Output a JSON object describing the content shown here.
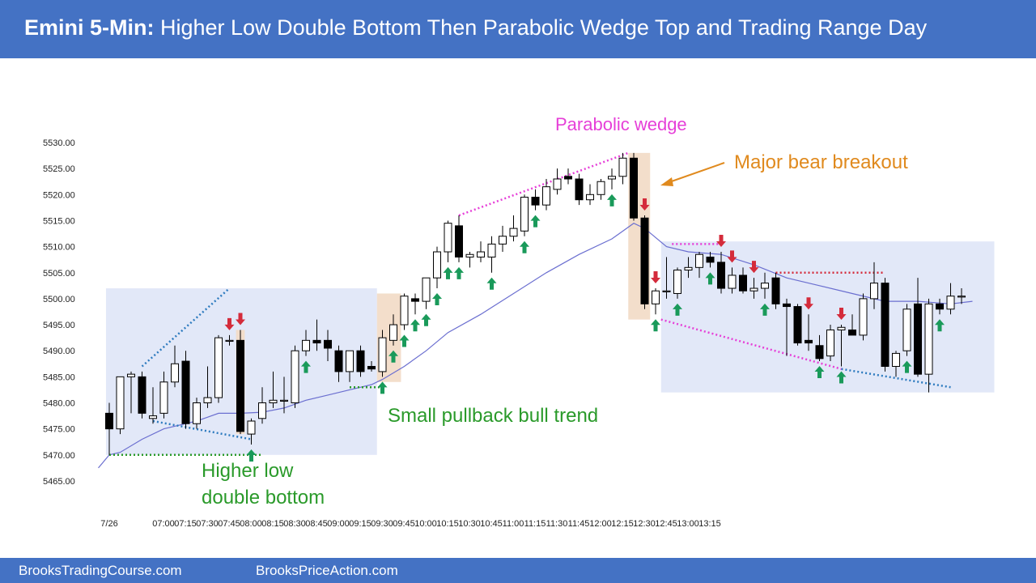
{
  "header": {
    "title_bold": "Emini 5-Min:",
    "title_rest": " Higher Low Double Bottom Then Parabolic Wedge Top and Trading Range Day"
  },
  "footer": {
    "left_text": "BrooksTradingCourse.com",
    "right_text": "BrooksPriceAction.com"
  },
  "colors": {
    "header_bg": "#4472c4",
    "range_box": "#dfe6f7",
    "breakout_box": "#f2dcc8",
    "ema": "#6b6fd0",
    "up_arrow": "#1a9a5a",
    "down_arrow": "#d42b3b",
    "magenta": "#e63fd8",
    "orange": "#e08a1e",
    "green_text": "#2a9a2a",
    "blue_dots": "#2e7bbf",
    "red_dots": "#d42b3b",
    "green_dots": "#2a9a2a"
  },
  "annotations": {
    "parabolic_wedge": "Parabolic wedge",
    "major_bear_breakout": "Major bear breakout",
    "small_pullback": "Small pullback bull trend",
    "higher_low_1": "Higher low",
    "higher_low_2": "double bottom"
  },
  "chart_data": {
    "type": "candlestick",
    "y_ticks": [
      "5530.00",
      "5525.00",
      "5520.00",
      "5515.00",
      "5510.00",
      "5505.00",
      "5500.00",
      "5495.00",
      "5490.00",
      "5485.00",
      "5480.00",
      "5475.00",
      "5470.00",
      "5465.00"
    ],
    "ylim": [
      5465,
      5530
    ],
    "x_ticks": [
      "7/26",
      "07:00",
      "07:15",
      "07:30",
      "07:45",
      "08:00",
      "08:15",
      "08:30",
      "08:45",
      "09:00",
      "09:15",
      "09:30",
      "09:45",
      "10:00",
      "10:15",
      "10:30",
      "10:45",
      "11:00",
      "11:15",
      "11:30",
      "11:45",
      "12:00",
      "12:15",
      "12:30",
      "12:45",
      "13:00",
      "13:15"
    ],
    "candles": [
      {
        "o": 5478,
        "h": 5480,
        "l": 5470,
        "c": 5475
      },
      {
        "o": 5475,
        "h": 5485,
        "l": 5474,
        "c": 5485
      },
      {
        "o": 5485,
        "h": 5486,
        "l": 5478,
        "c": 5485.5
      },
      {
        "o": 5485,
        "h": 5486,
        "l": 5477,
        "c": 5478
      },
      {
        "o": 5477,
        "h": 5483,
        "l": 5476,
        "c": 5477.5
      },
      {
        "o": 5478,
        "h": 5486,
        "l": 5477,
        "c": 5484
      },
      {
        "o": 5484,
        "h": 5491,
        "l": 5483,
        "c": 5487.5
      },
      {
        "o": 5488,
        "h": 5490,
        "l": 5475,
        "c": 5476
      },
      {
        "o": 5476,
        "h": 5481,
        "l": 5475,
        "c": 5480
      },
      {
        "o": 5480,
        "h": 5487,
        "l": 5479,
        "c": 5481
      },
      {
        "o": 5481,
        "h": 5493,
        "l": 5480,
        "c": 5492.5
      },
      {
        "o": 5492,
        "h": 5493,
        "l": 5491,
        "c": 5492
      },
      {
        "o": 5492,
        "h": 5494,
        "l": 5474,
        "c": 5474.5
      },
      {
        "o": 5474,
        "h": 5477,
        "l": 5472,
        "c": 5476.5
      },
      {
        "o": 5477,
        "h": 5483,
        "l": 5476,
        "c": 5480
      },
      {
        "o": 5480,
        "h": 5486,
        "l": 5479,
        "c": 5480.5
      },
      {
        "o": 5480.5,
        "h": 5485,
        "l": 5478,
        "c": 5480.5
      },
      {
        "o": 5480,
        "h": 5491,
        "l": 5479,
        "c": 5490
      },
      {
        "o": 5490,
        "h": 5494,
        "l": 5489,
        "c": 5492
      },
      {
        "o": 5492,
        "h": 5496,
        "l": 5490,
        "c": 5491.5
      },
      {
        "o": 5492,
        "h": 5494,
        "l": 5488,
        "c": 5490.5
      },
      {
        "o": 5490,
        "h": 5491,
        "l": 5484,
        "c": 5486
      },
      {
        "o": 5486,
        "h": 5490,
        "l": 5484,
        "c": 5490
      },
      {
        "o": 5490,
        "h": 5491,
        "l": 5485,
        "c": 5486
      },
      {
        "o": 5487,
        "h": 5488,
        "l": 5486,
        "c": 5486.5
      },
      {
        "o": 5486,
        "h": 5494,
        "l": 5485,
        "c": 5492.5
      },
      {
        "o": 5492,
        "h": 5497,
        "l": 5491,
        "c": 5495
      },
      {
        "o": 5495,
        "h": 5501,
        "l": 5494,
        "c": 5500.5
      },
      {
        "o": 5500,
        "h": 5501,
        "l": 5497,
        "c": 5499.5
      },
      {
        "o": 5499.5,
        "h": 5504,
        "l": 5498,
        "c": 5504
      },
      {
        "o": 5504,
        "h": 5510,
        "l": 5502,
        "c": 5509
      },
      {
        "o": 5509,
        "h": 5515,
        "l": 5507,
        "c": 5514.5
      },
      {
        "o": 5514,
        "h": 5516,
        "l": 5507,
        "c": 5508
      },
      {
        "o": 5508,
        "h": 5509,
        "l": 5506,
        "c": 5508.5
      },
      {
        "o": 5508,
        "h": 5511,
        "l": 5507,
        "c": 5509
      },
      {
        "o": 5508,
        "h": 5512,
        "l": 5505,
        "c": 5510.5
      },
      {
        "o": 5510.5,
        "h": 5514,
        "l": 5509,
        "c": 5512
      },
      {
        "o": 5512,
        "h": 5516,
        "l": 5511,
        "c": 5513.5
      },
      {
        "o": 5513,
        "h": 5520,
        "l": 5512,
        "c": 5519.5
      },
      {
        "o": 5519.5,
        "h": 5521,
        "l": 5517,
        "c": 5518
      },
      {
        "o": 5518,
        "h": 5523,
        "l": 5517,
        "c": 5521.5
      },
      {
        "o": 5521,
        "h": 5525,
        "l": 5520,
        "c": 5523
      },
      {
        "o": 5523.5,
        "h": 5525,
        "l": 5522,
        "c": 5523
      },
      {
        "o": 5523,
        "h": 5524,
        "l": 5518,
        "c": 5519
      },
      {
        "o": 5519,
        "h": 5522,
        "l": 5518,
        "c": 5520
      },
      {
        "o": 5520,
        "h": 5523,
        "l": 5519,
        "c": 5522.5
      },
      {
        "o": 5523,
        "h": 5525,
        "l": 5521,
        "c": 5523.5
      },
      {
        "o": 5523.5,
        "h": 5528,
        "l": 5522,
        "c": 5527
      },
      {
        "o": 5527,
        "h": 5528,
        "l": 5515,
        "c": 5515.5
      },
      {
        "o": 5515.5,
        "h": 5516,
        "l": 5498,
        "c": 5499
      },
      {
        "o": 5499,
        "h": 5502,
        "l": 5497,
        "c": 5501.5
      },
      {
        "o": 5501.5,
        "h": 5508,
        "l": 5500,
        "c": 5501.5
      },
      {
        "o": 5501,
        "h": 5506,
        "l": 5500,
        "c": 5505.5
      },
      {
        "o": 5505.5,
        "h": 5508,
        "l": 5504,
        "c": 5506
      },
      {
        "o": 5506,
        "h": 5509,
        "l": 5504,
        "c": 5508.5
      },
      {
        "o": 5508,
        "h": 5509,
        "l": 5506,
        "c": 5507
      },
      {
        "o": 5507,
        "h": 5509,
        "l": 5501,
        "c": 5502
      },
      {
        "o": 5502,
        "h": 5506,
        "l": 5501,
        "c": 5504.5
      },
      {
        "o": 5504.5,
        "h": 5506,
        "l": 5501,
        "c": 5501.5
      },
      {
        "o": 5501.5,
        "h": 5504,
        "l": 5500,
        "c": 5502
      },
      {
        "o": 5502,
        "h": 5505,
        "l": 5500,
        "c": 5503
      },
      {
        "o": 5504,
        "h": 5505,
        "l": 5498,
        "c": 5499
      },
      {
        "o": 5499,
        "h": 5500,
        "l": 5489,
        "c": 5498.5
      },
      {
        "o": 5498.5,
        "h": 5499,
        "l": 5491,
        "c": 5491.5
      },
      {
        "o": 5492,
        "h": 5497,
        "l": 5490,
        "c": 5491.5
      },
      {
        "o": 5491,
        "h": 5493,
        "l": 5488,
        "c": 5488.5
      },
      {
        "o": 5489,
        "h": 5495,
        "l": 5488,
        "c": 5494
      },
      {
        "o": 5494,
        "h": 5495,
        "l": 5487,
        "c": 5494.5
      },
      {
        "o": 5494,
        "h": 5497,
        "l": 5493,
        "c": 5493
      },
      {
        "o": 5493,
        "h": 5501,
        "l": 5492,
        "c": 5500
      },
      {
        "o": 5500,
        "h": 5507,
        "l": 5498,
        "c": 5503
      },
      {
        "o": 5503,
        "h": 5504,
        "l": 5486,
        "c": 5487
      },
      {
        "o": 5487,
        "h": 5490,
        "l": 5485,
        "c": 5489.5
      },
      {
        "o": 5490,
        "h": 5499,
        "l": 5489,
        "c": 5498
      },
      {
        "o": 5499,
        "h": 5504,
        "l": 5485,
        "c": 5485.5
      },
      {
        "o": 5485.5,
        "h": 5500,
        "l": 5482,
        "c": 5499
      },
      {
        "o": 5499,
        "h": 5500,
        "l": 5497,
        "c": 5498
      },
      {
        "o": 5498,
        "h": 5503,
        "l": 5497,
        "c": 5500.5
      },
      {
        "o": 5500.5,
        "h": 5502,
        "l": 5499,
        "c": 5500.5
      }
    ],
    "ema": [
      [
        -1,
        5467.5
      ],
      [
        0,
        5470
      ],
      [
        1,
        5470.5
      ],
      [
        3,
        5473
      ],
      [
        5,
        5475
      ],
      [
        8,
        5476.5
      ],
      [
        10,
        5478
      ],
      [
        12,
        5478
      ],
      [
        14,
        5478.2
      ],
      [
        16,
        5479
      ],
      [
        18,
        5480.5
      ],
      [
        20,
        5481.5
      ],
      [
        22,
        5482.5
      ],
      [
        24,
        5483.5
      ],
      [
        25,
        5484.5
      ],
      [
        27,
        5487
      ],
      [
        29,
        5490
      ],
      [
        31,
        5493.5
      ],
      [
        34,
        5497
      ],
      [
        37,
        5501
      ],
      [
        40,
        5505
      ],
      [
        43,
        5508.5
      ],
      [
        46,
        5511.5
      ],
      [
        48,
        5514.5
      ],
      [
        49,
        5513.5
      ],
      [
        51,
        5510
      ],
      [
        53,
        5509
      ],
      [
        56,
        5508.5
      ],
      [
        59,
        5506.5
      ],
      [
        62,
        5504
      ],
      [
        65,
        5502.5
      ],
      [
        68,
        5501
      ],
      [
        71,
        5499.5
      ],
      [
        74,
        5499.5
      ],
      [
        77,
        5499
      ],
      [
        79,
        5499.5
      ]
    ],
    "up_arrows": [
      13,
      18,
      25,
      26,
      27,
      28,
      29,
      30,
      31,
      32,
      35,
      38,
      39,
      46,
      50,
      52,
      55,
      60,
      65,
      67,
      73,
      76
    ],
    "down_arrows": [
      11,
      12,
      49,
      50,
      56,
      57,
      59,
      64,
      67
    ],
    "boxes": [
      {
        "kind": "range",
        "i0": -0.3,
        "i1": 24.5,
        "y0": 5470,
        "y1": 5502
      },
      {
        "kind": "breakout",
        "i0": 24.5,
        "i1": 26.7,
        "y0": 5484,
        "y1": 5501
      },
      {
        "kind": "breakout",
        "i0": 47.5,
        "i1": 49.5,
        "y0": 5496,
        "y1": 5528
      },
      {
        "kind": "breakout",
        "i0": 11.6,
        "i1": 12.4,
        "y0": 5474,
        "y1": 5494
      },
      {
        "kind": "range",
        "i0": 50.5,
        "i1": 81,
        "y0": 5482,
        "y1": 5511
      }
    ],
    "x_tick_index": [
      0,
      3,
      5,
      7,
      9,
      11,
      13,
      15,
      17,
      19,
      21,
      23,
      25,
      27,
      29,
      31,
      33,
      35,
      37,
      39,
      41,
      43,
      45,
      47,
      49,
      51,
      53
    ]
  }
}
